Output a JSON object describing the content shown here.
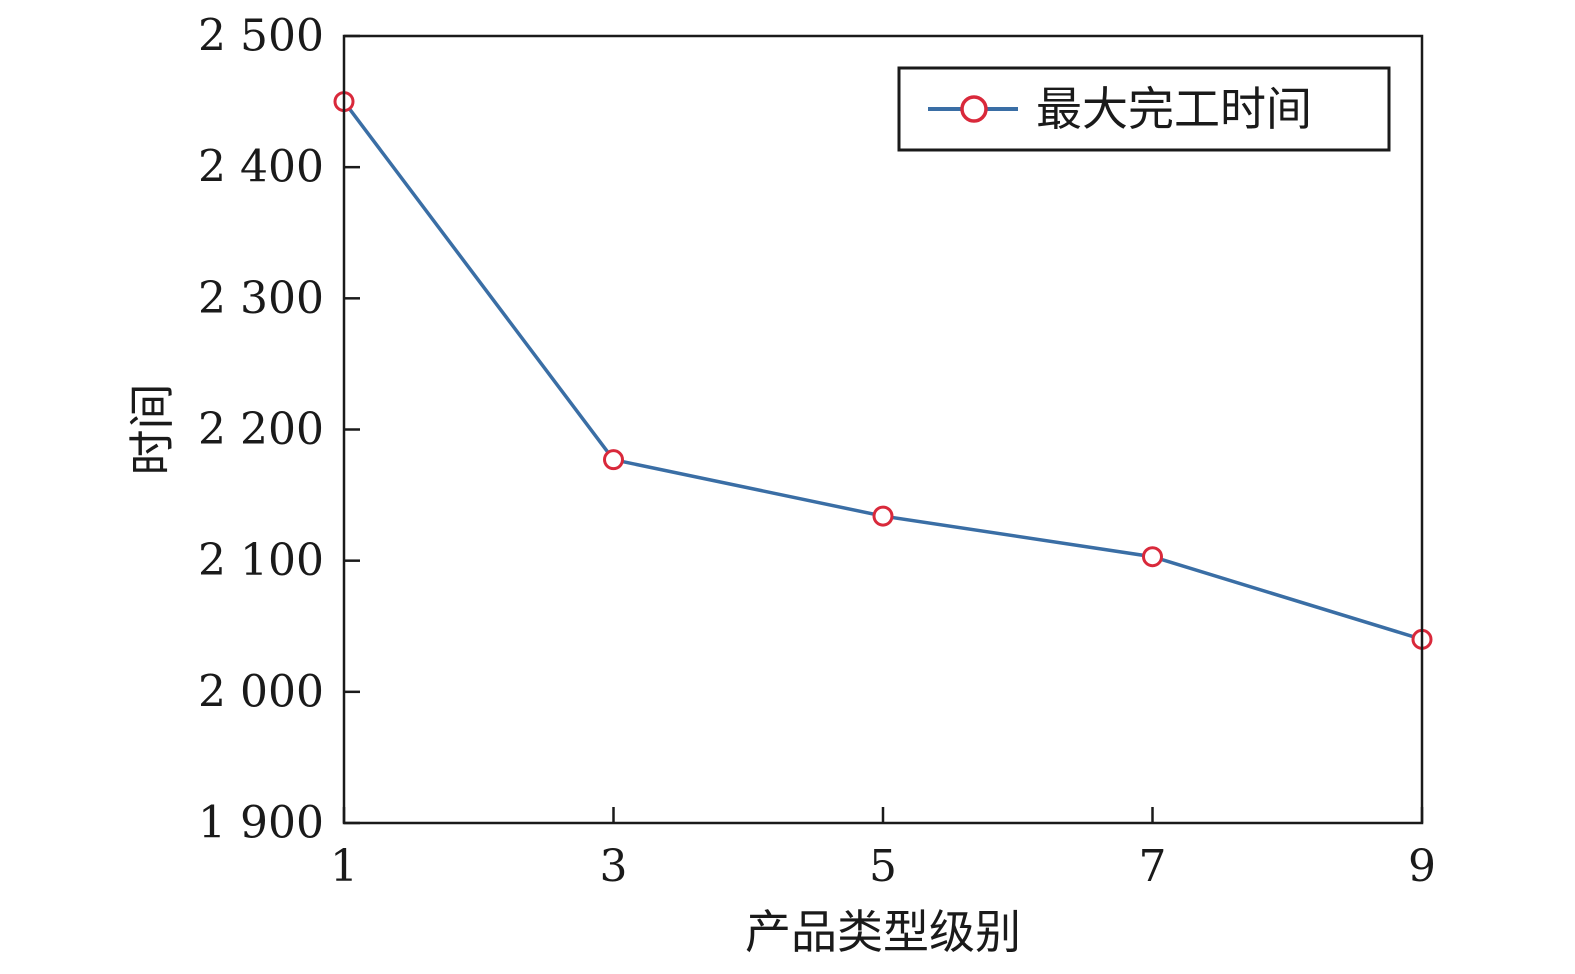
{
  "chart_data": {
    "type": "line",
    "title": "",
    "xlabel": "产品类型级别",
    "ylabel": "时间",
    "x": [
      1,
      3,
      5,
      7,
      9
    ],
    "series": [
      {
        "name": "最大完工时间",
        "values": [
          2450,
          2177,
          2134,
          2103,
          2040
        ],
        "color": "#3a6ea5",
        "marker": "open-circle",
        "marker_color": "#d9293b"
      }
    ],
    "xlim": [
      1,
      9
    ],
    "ylim": [
      1900,
      2500
    ],
    "xticks": [
      1,
      3,
      5,
      7,
      9
    ],
    "xtick_labels": [
      "1",
      "3",
      "5",
      "7",
      "9"
    ],
    "yticks": [
      1900,
      2000,
      2100,
      2200,
      2300,
      2400,
      2500
    ],
    "ytick_labels": [
      "1 900",
      "2 000",
      "2 100",
      "2 200",
      "2 300",
      "2 400",
      "2 500"
    ],
    "grid": false,
    "legend_position": "top-right"
  }
}
